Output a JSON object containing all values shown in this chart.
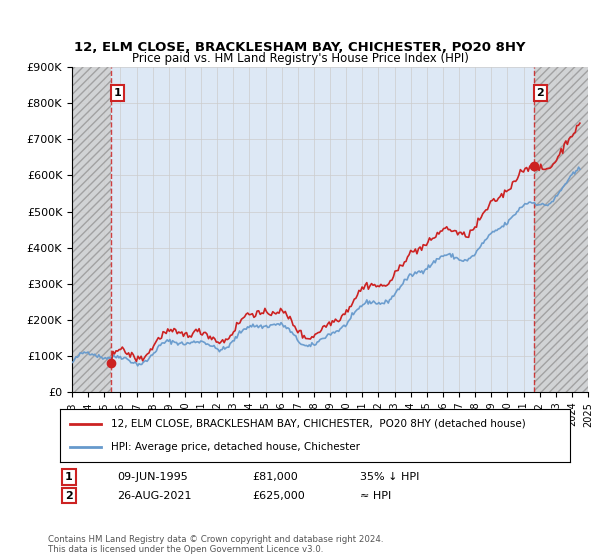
{
  "title": "12, ELM CLOSE, BRACKLESHAM BAY, CHICHESTER, PO20 8HY",
  "subtitle": "Price paid vs. HM Land Registry's House Price Index (HPI)",
  "legend_label_red": "12, ELM CLOSE, BRACKLESHAM BAY, CHICHESTER,  PO20 8HY (detached house)",
  "legend_label_blue": "HPI: Average price, detached house, Chichester",
  "annotation1_label": "1",
  "annotation1_date": "09-JUN-1995",
  "annotation1_price": "£81,000",
  "annotation1_hpi": "35% ↓ HPI",
  "annotation2_label": "2",
  "annotation2_date": "26-AUG-2021",
  "annotation2_price": "£625,000",
  "annotation2_hpi": "≈ HPI",
  "footnote": "Contains HM Land Registry data © Crown copyright and database right 2024.\nThis data is licensed under the Open Government Licence v3.0.",
  "xmin": 1993,
  "xmax": 2025,
  "ymin": 0,
  "ymax": 900000,
  "yticks": [
    0,
    100000,
    200000,
    300000,
    400000,
    500000,
    600000,
    700000,
    800000,
    900000
  ],
  "ytick_labels": [
    "£0",
    "£100K",
    "£200K",
    "£300K",
    "£400K",
    "£500K",
    "£600K",
    "£700K",
    "£800K",
    "£900K"
  ],
  "sale1_x": 1995.44,
  "sale1_y": 81000,
  "sale2_x": 2021.65,
  "sale2_y": 625000,
  "hpi_color": "#6699cc",
  "red_color": "#cc2222",
  "annotation_box_color": "#cc2222",
  "grid_color": "#cccccc",
  "background_color": "#ffffff",
  "plot_bg_color": "#dde8f5"
}
